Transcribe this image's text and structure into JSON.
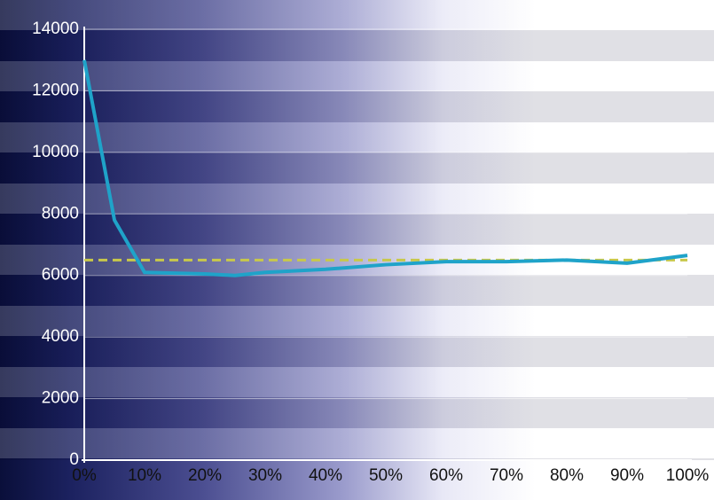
{
  "chart_data": {
    "type": "line",
    "x": [
      0,
      5,
      10,
      20,
      25,
      30,
      40,
      50,
      60,
      70,
      80,
      90,
      100
    ],
    "series": [
      {
        "color": "#1fa3c9",
        "values": [
          13000,
          7800,
          6100,
          6050,
          6000,
          6100,
          6200,
          6350,
          6450,
          6450,
          6500,
          6400,
          6650
        ]
      },
      {
        "color": "#c8c84a",
        "dashed": true,
        "values": [
          6500,
          6500,
          6500,
          6500,
          6500,
          6500,
          6500,
          6500,
          6500,
          6500,
          6500,
          6500,
          6500
        ]
      }
    ],
    "xlim": [
      0,
      100
    ],
    "xticks": [
      {
        "value": 0,
        "label": "0%"
      },
      {
        "value": 10,
        "label": "10%"
      },
      {
        "value": 20,
        "label": "20%"
      },
      {
        "value": 30,
        "label": "30%"
      },
      {
        "value": 40,
        "label": "40%"
      },
      {
        "value": 50,
        "label": "50%"
      },
      {
        "value": 60,
        "label": "60%"
      },
      {
        "value": 70,
        "label": "70%"
      },
      {
        "value": 80,
        "label": "80%"
      },
      {
        "value": 90,
        "label": "90%"
      },
      {
        "value": 100,
        "label": "100%"
      }
    ],
    "ylim": [
      0,
      14000
    ],
    "yticks": [
      0,
      2000,
      4000,
      6000,
      8000,
      10000,
      12000,
      14000
    ],
    "grid": true
  }
}
